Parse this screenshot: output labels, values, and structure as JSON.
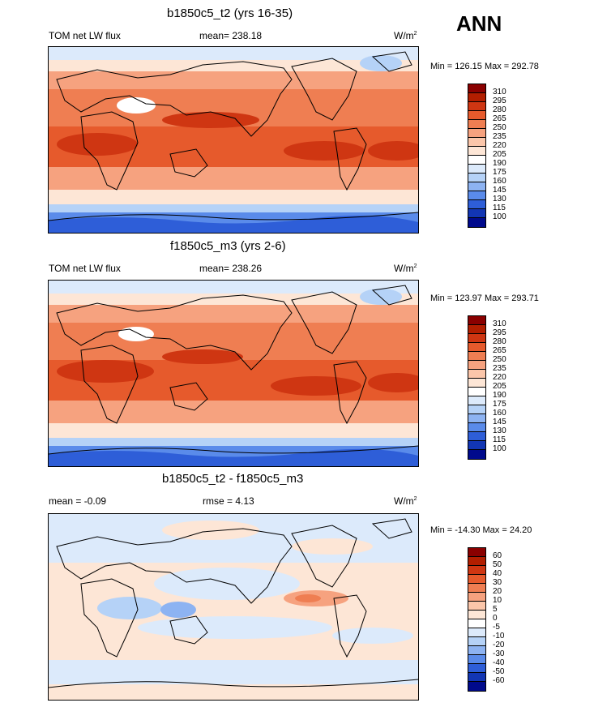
{
  "season": "ANN",
  "panels": [
    {
      "title": "b1850c5_t2 (yrs 16-35)",
      "left_label": "TOM net LW flux",
      "center_label": "mean= 238.18",
      "units_base": "W/m",
      "units_exp": "2",
      "minmax": "Min = 126.15 Max = 292.78",
      "levels": [
        "310",
        "295",
        "280",
        "265",
        "250",
        "235",
        "220",
        "205",
        "190",
        "175",
        "160",
        "145",
        "130",
        "115",
        "100"
      ],
      "colors": [
        "#8a0000",
        "#b21e00",
        "#cf3612",
        "#e65a2c",
        "#ef7e52",
        "#f6a27f",
        "#fbc6aa",
        "#fde6d6",
        "#ffffff",
        "#dceafb",
        "#b5d2f7",
        "#8db3f2",
        "#5a8bea",
        "#2e5ed8",
        "#1236b4",
        "#000a8c"
      ]
    },
    {
      "title": "f1850c5_m3 (yrs 2-6)",
      "left_label": "TOM net LW flux",
      "center_label": "mean= 238.26",
      "units_base": "W/m",
      "units_exp": "2",
      "minmax": "Min = 123.97 Max = 293.71",
      "levels": [
        "310",
        "295",
        "280",
        "265",
        "250",
        "235",
        "220",
        "205",
        "190",
        "175",
        "160",
        "145",
        "130",
        "115",
        "100"
      ],
      "colors": [
        "#8a0000",
        "#b21e00",
        "#cf3612",
        "#e65a2c",
        "#ef7e52",
        "#f6a27f",
        "#fbc6aa",
        "#fde6d6",
        "#ffffff",
        "#dceafb",
        "#b5d2f7",
        "#8db3f2",
        "#5a8bea",
        "#2e5ed8",
        "#1236b4",
        "#000a8c"
      ]
    },
    {
      "title": "b1850c5_t2 - f1850c5_m3",
      "left_label": "mean =  -0.09",
      "center_label": "rmse =   4.13",
      "units_base": "W/m",
      "units_exp": "2",
      "minmax": "Min = -14.30 Max =  24.20",
      "levels": [
        "60",
        "50",
        "40",
        "30",
        "20",
        "10",
        "5",
        "0",
        "-5",
        "-10",
        "-20",
        "-30",
        "-40",
        "-50",
        "-60"
      ],
      "colors": [
        "#8a0000",
        "#b21e00",
        "#cf3612",
        "#e65a2c",
        "#ef7e52",
        "#f6a27f",
        "#fbc6aa",
        "#fde6d6",
        "#ffffff",
        "#dceafb",
        "#b5d2f7",
        "#8db3f2",
        "#5a8bea",
        "#2e5ed8",
        "#1236b4",
        "#000a8c"
      ]
    }
  ]
}
